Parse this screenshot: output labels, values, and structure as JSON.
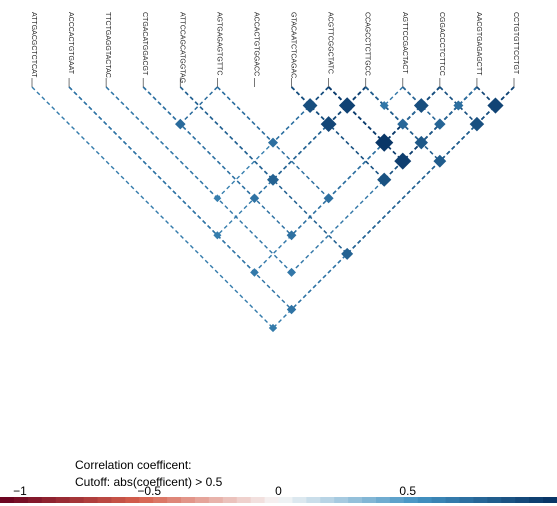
{
  "chart_data": {
    "type": "heatmap",
    "layout": "triangular-ld",
    "snps": [
      "ATTGACGCTCTCAT",
      "ACCCACTGTGAAT",
      "TTCTGAGGTACTAC",
      "CTGACATGGACGT",
      "ATTCCAGCATGGTAG",
      "AGTGAGAGTGTTC",
      "ACCACTGTGGACC",
      "GTACAATCTCAGAC",
      "ACGTTCGGCTATC",
      "CCAGCCTCTTGCC",
      "AGTTCCGACTACT",
      "CGGACCCTCTTCC",
      "AACGTGAGAGCTT",
      "CCTGTGTTCCTGT"
    ],
    "cutoff": 0.5,
    "legend_title": "Correlation coefficent:",
    "legend_subtitle": "Cutoff: abs(coefficent) > 0.5",
    "scale_range": [
      -1,
      1
    ],
    "scale_ticks": [
      {
        "value": -1,
        "label": "−1"
      },
      {
        "value": -0.5,
        "label": "−0.5"
      },
      {
        "value": 0,
        "label": "0"
      },
      {
        "value": 0.5,
        "label": "0.5"
      }
    ],
    "colors": {
      "neg_dark": "#67001f",
      "neg_mid": "#d6604d",
      "neutral": "#f7f7f7",
      "pos_mid": "#4393c3",
      "pos_dark": "#053061"
    },
    "pairs": [
      {
        "i": 0,
        "j": 13,
        "r": 0.62
      },
      {
        "i": 1,
        "j": 9,
        "r": 0.61
      },
      {
        "i": 1,
        "j": 11,
        "r": 0.63
      },
      {
        "i": 1,
        "j": 13,
        "r": 0.66
      },
      {
        "i": 2,
        "j": 8,
        "r": 0.6
      },
      {
        "i": 2,
        "j": 12,
        "r": 0.64
      },
      {
        "i": 3,
        "j": 5,
        "r": 0.7
      },
      {
        "i": 3,
        "j": 9,
        "r": 0.66
      },
      {
        "i": 3,
        "j": 11,
        "r": 0.67
      },
      {
        "i": 4,
        "j": 9,
        "r": 0.75
      },
      {
        "i": 4,
        "j": 13,
        "r": 0.75
      },
      {
        "i": 5,
        "j": 8,
        "r": 0.68
      },
      {
        "i": 5,
        "j": 11,
        "r": 0.68
      },
      {
        "i": 7,
        "j": 8,
        "r": 0.85
      },
      {
        "i": 7,
        "j": 9,
        "r": 0.89
      },
      {
        "i": 7,
        "j": 12,
        "r": 0.83
      },
      {
        "i": 8,
        "j": 9,
        "r": 0.91
      },
      {
        "i": 8,
        "j": 11,
        "r": 0.97
      },
      {
        "i": 8,
        "j": 12,
        "r": 0.93
      },
      {
        "i": 9,
        "j": 10,
        "r": 0.64
      },
      {
        "i": 9,
        "j": 11,
        "r": 0.72
      },
      {
        "i": 9,
        "j": 12,
        "r": 0.8
      },
      {
        "i": 9,
        "j": 13,
        "r": 0.78
      },
      {
        "i": 10,
        "j": 11,
        "r": 0.85
      },
      {
        "i": 10,
        "j": 12,
        "r": 0.73
      },
      {
        "i": 11,
        "j": 12,
        "r": 0.68
      },
      {
        "i": 11,
        "j": 13,
        "r": 0.84
      },
      {
        "i": 12,
        "j": 13,
        "r": 0.9
      }
    ]
  }
}
